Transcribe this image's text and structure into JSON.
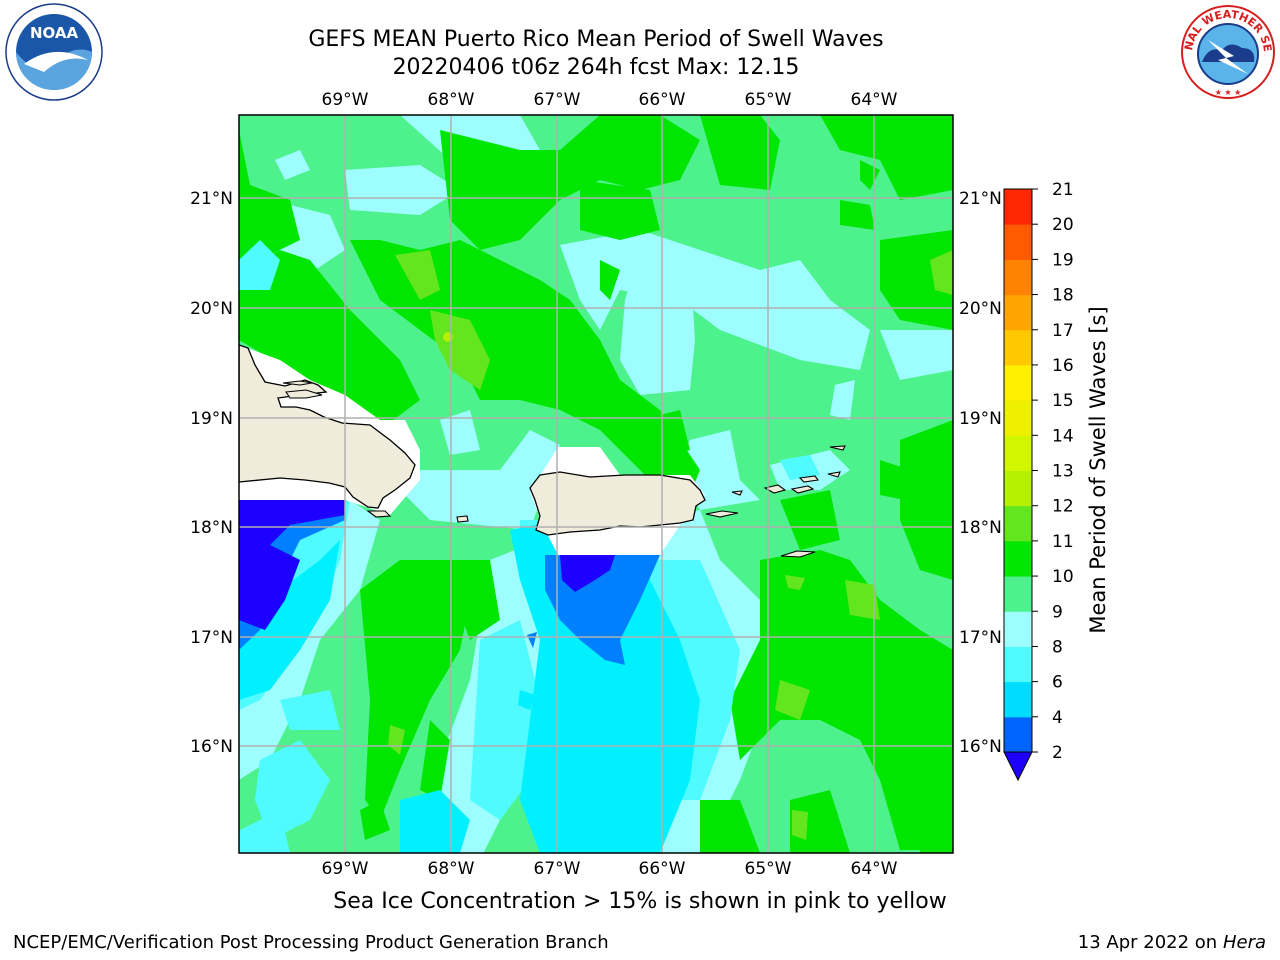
{
  "title": {
    "line1": "GEFS MEAN Puerto Rico Mean Period of Swell Waves",
    "line2": "20220406 t06z 264h fcst   Max: 12.15"
  },
  "map": {
    "lon_labels": [
      "69°W",
      "68°W",
      "67°W",
      "66°W",
      "65°W",
      "64°W"
    ],
    "lat_labels": [
      "21°N",
      "20°N",
      "19°N",
      "18°N",
      "17°N",
      "16°N"
    ],
    "land_color": "#efecdc",
    "ocean_dominant_color": "#4ef28c",
    "grid_color": "#b0b0b0"
  },
  "colorbar": {
    "label": "Mean Period of Swell Waves [s]",
    "ticks": [
      "2",
      "4",
      "6",
      "8",
      "9",
      "10",
      "11",
      "12",
      "13",
      "14",
      "15",
      "16",
      "17",
      "18",
      "19",
      "20",
      "21"
    ],
    "colors": [
      "#0064ff",
      "#00dcff",
      "#50fbff",
      "#9efeff",
      "#4ef28c",
      "#00e600",
      "#64e61e",
      "#b4f000",
      "#d2f500",
      "#eef000",
      "#fff000",
      "#ffc800",
      "#ffa500",
      "#ff8200",
      "#ff5a00",
      "#ff2800",
      "#ff0000"
    ],
    "under_color": "#1e00ff",
    "extend": "min"
  },
  "note": "Sea Ice Concentration > 15% is shown in pink to yellow",
  "footer": {
    "left": "NCEP/EMC/Verification Post Processing Product Generation Branch",
    "right_date": "13 Apr 2022 on ",
    "right_host": "Hera"
  },
  "logos": {
    "left": "noaa-logo",
    "right": "nws-logo",
    "nws_text": "NATIONAL WEATHER SERVICE",
    "noaa_text": "NOAA"
  }
}
